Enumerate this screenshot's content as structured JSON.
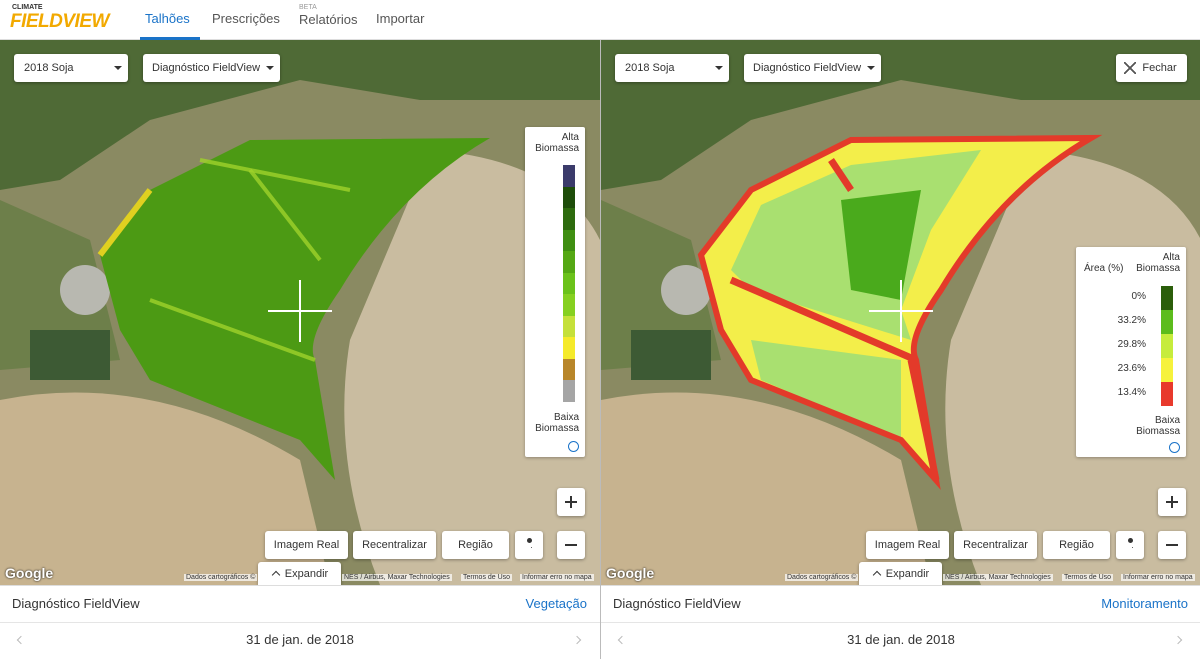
{
  "header": {
    "logo_top": "CLIMATE",
    "logo": "FIELDVIEW",
    "nav": [
      {
        "label": "Talhões"
      },
      {
        "label": "Prescrições"
      },
      {
        "label": "Relatórios",
        "badge": "BETA"
      },
      {
        "label": "Importar"
      }
    ]
  },
  "panels": [
    {
      "season": "2018 Soja",
      "layer": "Diagnóstico FieldView",
      "legend": {
        "top": "Alta Biomassa",
        "bottom": "Baixa Biomassa"
      },
      "buttons": [
        "Imagem Real",
        "Recentralizar",
        "Região"
      ],
      "expand": "Expandir",
      "google": "Google",
      "attribution": [
        "Dados cartográficos ©",
        "NES / Airbus, Maxar Technologies",
        "Termos de Uso",
        "Informar erro no mapa"
      ],
      "footer_title": "Diagnóstico FieldView",
      "footer_link": "Vegetação",
      "date": "31 de jan. de 2018"
    },
    {
      "season": "2018 Soja",
      "layer": "Diagnóstico FieldView",
      "close": "Fechar",
      "legend": {
        "header": "Área (%)",
        "top": "Alta Biomassa",
        "bottom": "Baixa Biomassa",
        "rows": [
          "0%",
          "33.2%",
          "29.8%",
          "23.6%",
          "13.4%"
        ]
      },
      "buttons": [
        "Imagem Real",
        "Recentralizar",
        "Região"
      ],
      "expand": "Expandir",
      "google": "Google",
      "attribution": [
        "Dados cartográficos ©",
        "NES / Airbus, Maxar Technologies",
        "Termos de Uso",
        "Informar erro no mapa"
      ],
      "footer_title": "Diagnóstico FieldView",
      "footer_link": "Monitoramento",
      "date": "31 de jan. de 2018"
    }
  ]
}
